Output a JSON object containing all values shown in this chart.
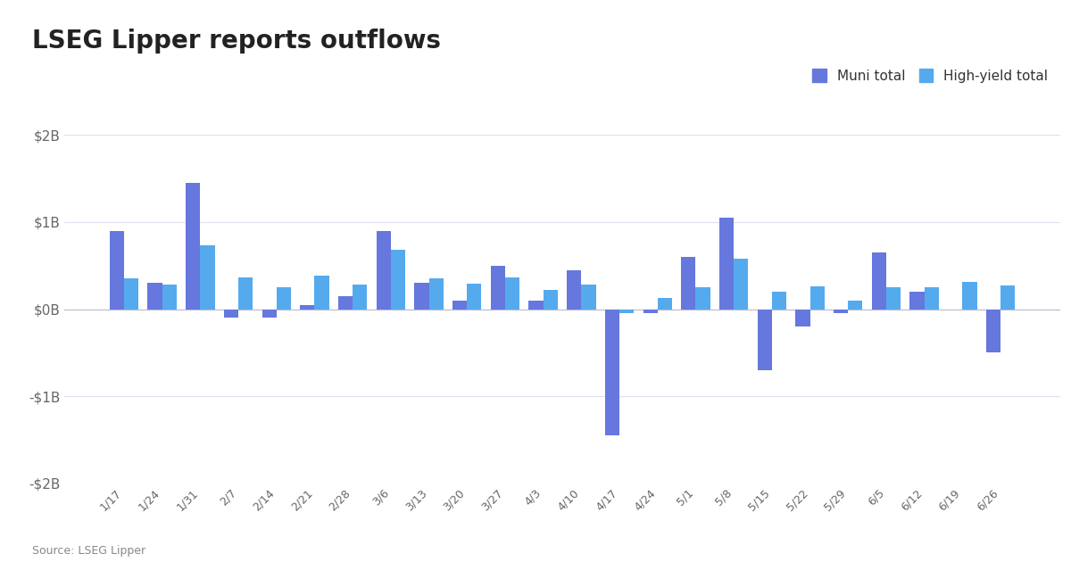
{
  "title": "LSEG Lipper reports outflows",
  "source": "Source: LSEG Lipper",
  "legend": [
    "Muni total",
    "High-yield total"
  ],
  "muni_color": "#6677dd",
  "hy_color": "#55aaee",
  "background_color": "#ffffff",
  "grid_color": "#e0e0ee",
  "ylim": [
    -2000,
    2000
  ],
  "yticks": [
    -2000,
    -1000,
    0,
    1000,
    2000
  ],
  "ytick_labels": [
    "-$2B",
    "-$1B",
    "$0B",
    "$1B",
    "$2B"
  ],
  "dates": [
    "1/17",
    "1/24",
    "1/31",
    "2/7",
    "2/14",
    "2/21",
    "2/28",
    "3/6",
    "3/13",
    "3/20",
    "3/27",
    "4/3",
    "4/10",
    "4/17",
    "4/24",
    "5/1",
    "5/8",
    "5/15",
    "5/22",
    "5/29",
    "6/5",
    "6/12",
    "6/19",
    "6/26"
  ],
  "muni_values": [
    900,
    300,
    1450,
    -100,
    -100,
    50,
    150,
    900,
    300,
    100,
    500,
    100,
    450,
    -1450,
    -50,
    600,
    1050,
    -700,
    -200,
    -50,
    650,
    200,
    0,
    -500
  ],
  "hy_values": [
    350,
    280,
    730,
    360,
    250,
    380,
    280,
    680,
    350,
    290,
    360,
    220,
    280,
    -50,
    130,
    250,
    580,
    200,
    260,
    100,
    250,
    250,
    310,
    270
  ]
}
